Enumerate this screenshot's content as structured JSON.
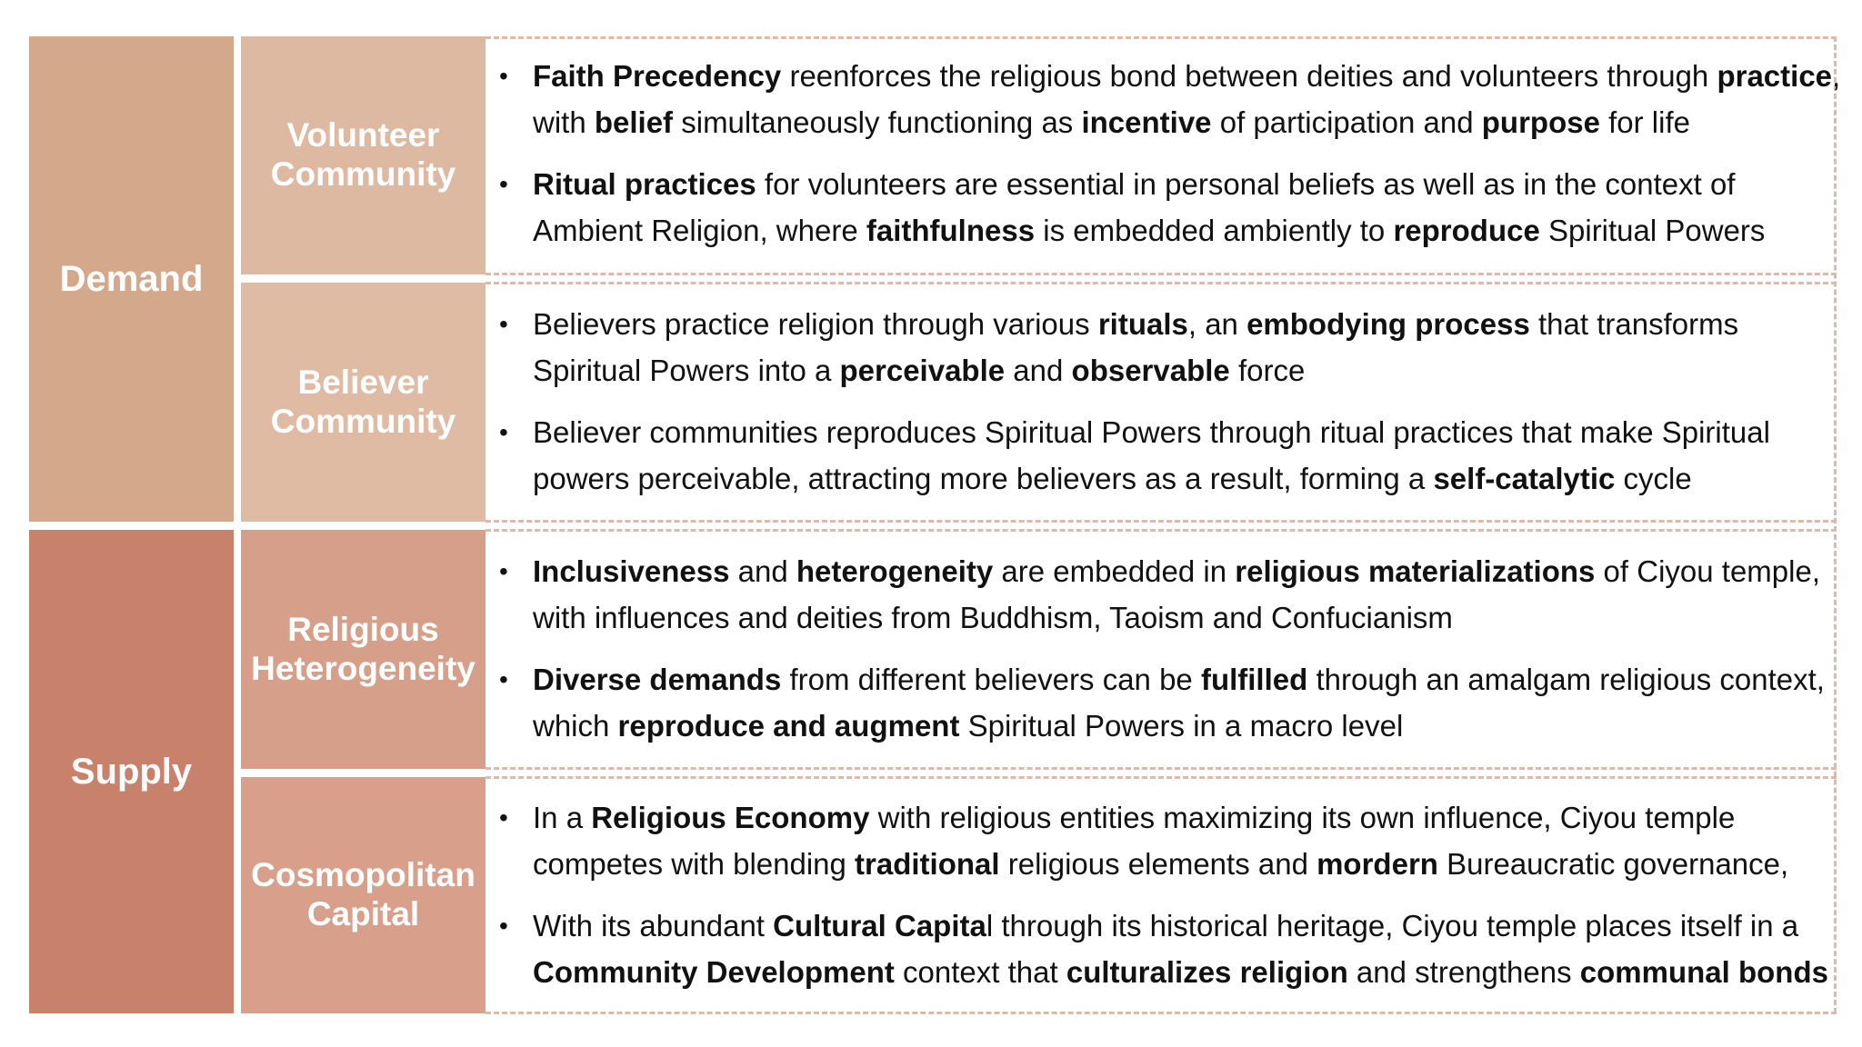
{
  "colors": {
    "demand": "#d4a98b",
    "supply": "#c8816b",
    "volunteer": "#deb9a2",
    "believer": "#dfbba4",
    "heterogeneity": "#d59f8a",
    "cosmopolitan": "#d8a08b",
    "dashed_border": "#e0b8a8"
  },
  "main": {
    "demand": "Demand",
    "supply": "Supply"
  },
  "sub": {
    "volunteer": [
      "Volunteer",
      "Community"
    ],
    "believer": [
      "Believer",
      "Community"
    ],
    "heterogeneity": [
      "Religious",
      "Heterogeneity"
    ],
    "cosmopolitan": [
      "Cosmopolitan",
      "Capital"
    ]
  },
  "sections": {
    "volunteer": [
      {
        "lines": [
          [
            {
              "t": "Faith Precedency",
              "b": true
            },
            {
              "t": " reenforces the religious bond between deities and volunteers through ",
              "b": false
            },
            {
              "t": "practice",
              "b": true
            },
            {
              "t": ",",
              "b": false
            }
          ],
          [
            {
              "t": "with ",
              "b": false
            },
            {
              "t": "belief",
              "b": true
            },
            {
              "t": " simultaneously functioning as ",
              "b": false
            },
            {
              "t": "incentive",
              "b": true
            },
            {
              "t": " of participation and ",
              "b": false
            },
            {
              "t": "purpose",
              "b": true
            },
            {
              "t": " for life",
              "b": false
            }
          ]
        ]
      },
      {
        "lines": [
          [
            {
              "t": "Ritual practices",
              "b": true
            },
            {
              "t": " for volunteers are essential in personal beliefs as well as in the context of",
              "b": false
            }
          ],
          [
            {
              "t": "Ambient Religion, where ",
              "b": false
            },
            {
              "t": "faithfulness",
              "b": true
            },
            {
              "t": " is embedded ambiently to ",
              "b": false
            },
            {
              "t": "reproduce",
              "b": true
            },
            {
              "t": " Spiritual Powers",
              "b": false
            }
          ]
        ]
      }
    ],
    "believer": [
      {
        "lines": [
          [
            {
              "t": "Believers practice religion through various ",
              "b": false
            },
            {
              "t": "rituals",
              "b": true
            },
            {
              "t": ", an ",
              "b": false
            },
            {
              "t": "embodying process",
              "b": true
            },
            {
              "t": " that transforms",
              "b": false
            }
          ],
          [
            {
              "t": "Spiritual Powers into a ",
              "b": false
            },
            {
              "t": "perceivable",
              "b": true
            },
            {
              "t": " and ",
              "b": false
            },
            {
              "t": "observable",
              "b": true
            },
            {
              "t": " force",
              "b": false
            }
          ]
        ]
      },
      {
        "lines": [
          [
            {
              "t": "Believer communities reproduces Spiritual Powers through ritual practices that make Spiritual",
              "b": false
            }
          ],
          [
            {
              "t": "powers perceivable, attracting more believers as a result, forming a ",
              "b": false
            },
            {
              "t": "self-catalytic",
              "b": true
            },
            {
              "t": " cycle",
              "b": false
            }
          ]
        ]
      }
    ],
    "heterogeneity": [
      {
        "lines": [
          [
            {
              "t": "Inclusiveness",
              "b": true
            },
            {
              "t": " and ",
              "b": false
            },
            {
              "t": "heterogeneity",
              "b": true
            },
            {
              "t": " are embedded in ",
              "b": false
            },
            {
              "t": "religious materializations",
              "b": true
            },
            {
              "t": " of Ciyou temple,",
              "b": false
            }
          ],
          [
            {
              "t": "with influences and deities from Buddhism, Taoism and Confucianism",
              "b": false
            }
          ]
        ]
      },
      {
        "lines": [
          [
            {
              "t": "Diverse demands",
              "b": true
            },
            {
              "t": " from different believers can be ",
              "b": false
            },
            {
              "t": "fulfilled",
              "b": true
            },
            {
              "t": " through an amalgam religious context,",
              "b": false
            }
          ],
          [
            {
              "t": "which ",
              "b": false
            },
            {
              "t": "reproduce and augment",
              "b": true
            },
            {
              "t": " Spiritual Powers in a macro level",
              "b": false
            }
          ]
        ]
      }
    ],
    "cosmopolitan": [
      {
        "lines": [
          [
            {
              "t": "In a ",
              "b": false
            },
            {
              "t": "Religious Economy",
              "b": true
            },
            {
              "t": " with religious entities maximizing its own influence, Ciyou temple",
              "b": false
            }
          ],
          [
            {
              "t": "competes with blending ",
              "b": false
            },
            {
              "t": "traditional",
              "b": true
            },
            {
              "t": " religious elements and ",
              "b": false
            },
            {
              "t": "mordern",
              "b": true
            },
            {
              "t": " Bureaucratic governance,",
              "b": false
            }
          ]
        ]
      },
      {
        "lines": [
          [
            {
              "t": "With its abundant ",
              "b": false
            },
            {
              "t": "Cultural Capita",
              "b": true
            },
            {
              "t": "l through its historical heritage, Ciyou temple places itself in a",
              "b": false
            }
          ],
          [
            {
              "t": "Community Development",
              "b": true
            },
            {
              "t": " context that ",
              "b": false
            },
            {
              "t": "culturalizes religion",
              "b": true
            },
            {
              "t": " and strengthens ",
              "b": false
            },
            {
              "t": "communal bonds",
              "b": true
            }
          ]
        ]
      }
    ]
  }
}
